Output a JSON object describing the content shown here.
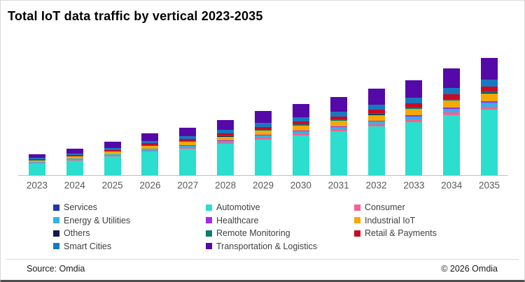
{
  "title": "Total IoT data traffic by vertical 2023-2035",
  "footer": {
    "source": "Source: Omdia",
    "copyright": "© 2026 Omdia"
  },
  "colors": {
    "axis_line": "#bfbfbf",
    "tick_label": "#595959",
    "legend_text": "#404040",
    "title_text": "#000000"
  },
  "chart_data": {
    "type": "bar",
    "stacked": true,
    "title": "Total IoT data traffic by vertical 2023-2035",
    "xlabel": "",
    "ylabel": "",
    "y_axis_visible": false,
    "grid": false,
    "value_scale": "relative units (no y-axis labels shown in image)",
    "legend_position": "bottom",
    "legend_columns": 3,
    "categories": [
      "2023",
      "2024",
      "2025",
      "2026",
      "2027",
      "2028",
      "2029",
      "2030",
      "2031",
      "2032",
      "2033",
      "2034",
      "2035"
    ],
    "series": [
      {
        "name": "Services",
        "color": "#2438a8",
        "values": [
          0.1,
          0.1,
          0.1,
          0.2,
          0.2,
          0.2,
          0.3,
          0.3,
          0.3,
          0.4,
          0.4,
          0.5,
          0.5
        ]
      },
      {
        "name": "Automotive",
        "color": "#2bdecd",
        "values": [
          16.9,
          21.4,
          27.0,
          33.8,
          38.3,
          44.5,
          51.2,
          56.9,
          62.5,
          69.2,
          76.0,
          85.6,
          94.0
        ]
      },
      {
        "name": "Consumer",
        "color": "#f8618f",
        "values": [
          0.7,
          0.9,
          1.2,
          1.4,
          1.6,
          1.9,
          2.2,
          2.4,
          2.7,
          3.0,
          3.2,
          3.6,
          4.0
        ]
      },
      {
        "name": "Energy & Utilities",
        "color": "#33b1ec",
        "values": [
          1.1,
          1.4,
          1.7,
          2.2,
          2.4,
          2.8,
          3.3,
          3.6,
          4.0,
          4.4,
          4.9,
          5.5,
          6.0
        ]
      },
      {
        "name": "Healthcare",
        "color": "#a02cee",
        "values": [
          0.3,
          0.3,
          0.4,
          0.5,
          0.6,
          0.7,
          0.8,
          0.9,
          1.0,
          1.1,
          1.2,
          1.4,
          1.5
        ]
      },
      {
        "name": "Industrial IoT",
        "color": "#f5a800",
        "values": [
          2.0,
          2.5,
          3.2,
          4.0,
          4.5,
          5.2,
          6.0,
          6.7,
          7.3,
          8.1,
          8.9,
          10.0,
          11.0
        ]
      },
      {
        "name": "Others",
        "color": "#10194f",
        "values": [
          0.2,
          0.2,
          0.3,
          0.4,
          0.4,
          0.5,
          0.5,
          0.6,
          0.7,
          0.7,
          0.8,
          0.9,
          1.0
        ]
      },
      {
        "name": "Remote Monitoring",
        "color": "#0e7b6c",
        "values": [
          0.4,
          0.5,
          0.6,
          0.7,
          0.8,
          0.9,
          1.1,
          1.2,
          1.3,
          1.5,
          1.6,
          1.8,
          2.0
        ]
      },
      {
        "name": "Retail & Payments",
        "color": "#c60a2a",
        "values": [
          1.3,
          1.6,
          2.0,
          2.5,
          2.9,
          3.3,
          3.8,
          4.2,
          4.7,
          5.2,
          5.7,
          6.4,
          7.0
        ]
      },
      {
        "name": "Smart Cities",
        "color": "#1779be",
        "values": [
          1.8,
          2.3,
          2.9,
          3.6,
          4.1,
          4.7,
          5.5,
          6.1,
          6.7,
          7.4,
          8.1,
          9.1,
          10.0
        ]
      },
      {
        "name": "Transportation & Logistics",
        "color": "#5409a8",
        "values": [
          5.6,
          7.1,
          8.9,
          11.2,
          12.6,
          14.7,
          16.9,
          18.8,
          20.6,
          22.9,
          25.1,
          28.3,
          31.0
        ]
      }
    ]
  }
}
